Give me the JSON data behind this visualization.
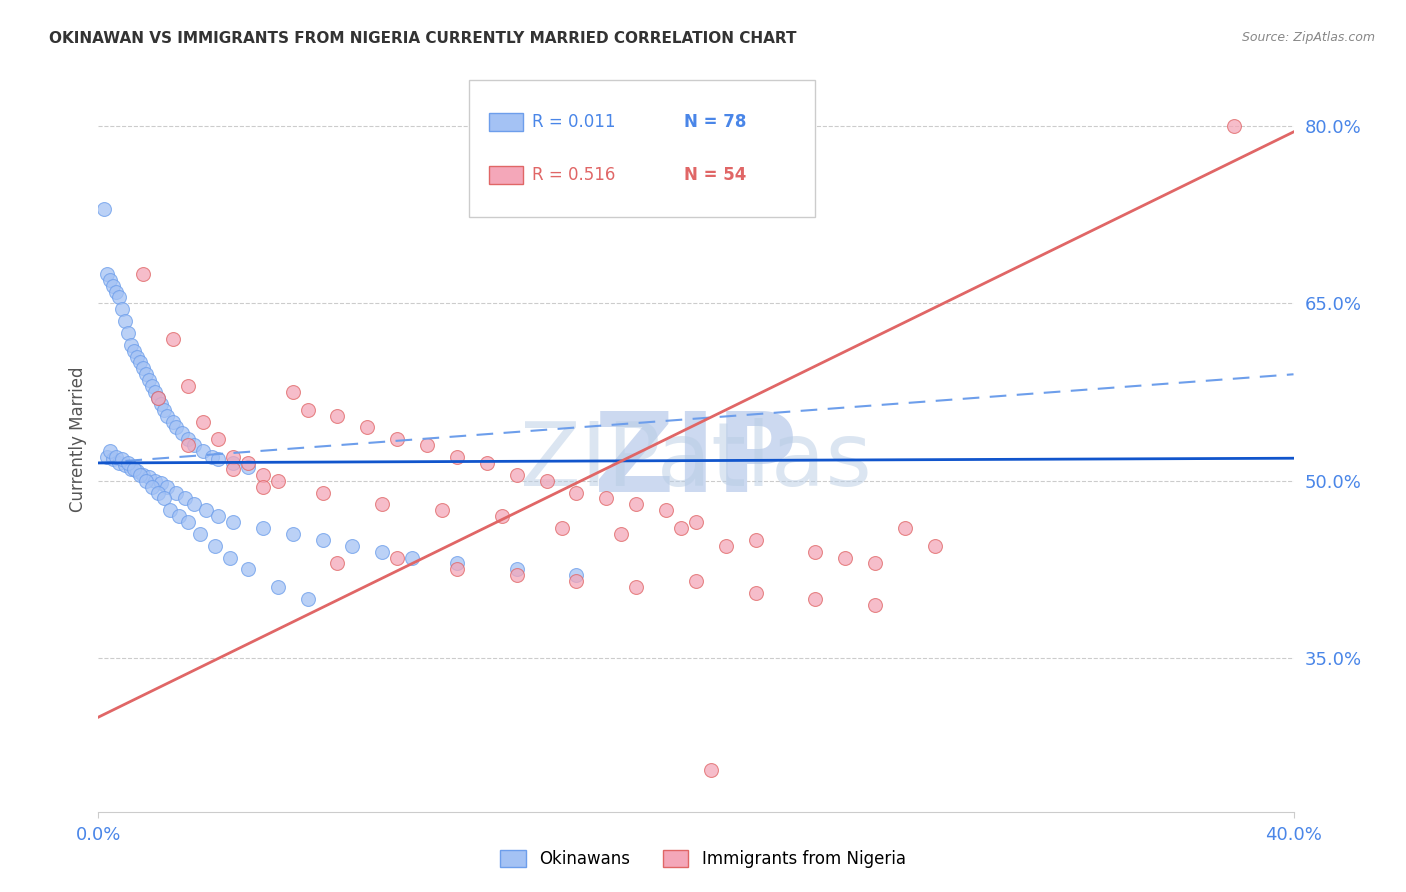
{
  "title": "OKINAWAN VS IMMIGRANTS FROM NIGERIA CURRENTLY MARRIED CORRELATION CHART",
  "source": "Source: ZipAtlas.com",
  "ylabel": "Currently Married",
  "right_yticks": [
    35.0,
    50.0,
    65.0,
    80.0
  ],
  "right_yticklabels": [
    "35.0%",
    "50.0%",
    "65.0%",
    "80.0%"
  ],
  "blue_scatter_face": "#a4c2f4",
  "blue_scatter_edge": "#6d9eeb",
  "pink_scatter_face": "#f4a7b9",
  "pink_scatter_edge": "#e06666",
  "blue_line_color": "#1155cc",
  "pink_line_color": "#e06666",
  "dashed_line_color": "#6d9eeb",
  "grid_color": "#cccccc",
  "tick_label_color": "#4a86e8",
  "ylabel_color": "#555555",
  "source_color": "#888888",
  "title_color": "#333333",
  "watermark_zip_color": "#ccd9f0",
  "watermark_atlas_color": "#b8cce4",
  "legend_edge_color": "#cccccc",
  "legend_blue_color": "#4a86e8",
  "legend_pink_color": "#e06666",
  "ok_blue_solid_x0": 0.0,
  "ok_blue_solid_x1": 40.0,
  "ok_blue_solid_y0": 51.5,
  "ok_blue_solid_y1": 51.9,
  "ok_dash_x0": 0.0,
  "ok_dash_x1": 40.0,
  "ok_dash_y0": 51.5,
  "ok_dash_y1": 59.0,
  "ng_line_x0": 0.0,
  "ng_line_x1": 40.0,
  "ng_line_y0": 30.0,
  "ng_line_y1": 79.5,
  "xlim_min": 0.0,
  "xlim_max": 40.0,
  "ylim_min": 22.0,
  "ylim_max": 85.0,
  "okinawan_x": [
    0.2,
    0.3,
    0.4,
    0.5,
    0.6,
    0.7,
    0.8,
    0.9,
    1.0,
    1.1,
    1.2,
    1.3,
    1.4,
    1.5,
    1.6,
    1.7,
    1.8,
    1.9,
    2.0,
    2.1,
    2.2,
    2.3,
    2.5,
    2.6,
    2.8,
    3.0,
    3.2,
    3.5,
    3.8,
    4.0,
    4.5,
    5.0,
    0.3,
    0.5,
    0.7,
    0.9,
    1.1,
    1.3,
    1.5,
    1.7,
    1.9,
    2.1,
    2.3,
    2.6,
    2.9,
    3.2,
    3.6,
    4.0,
    4.5,
    5.5,
    6.5,
    7.5,
    8.5,
    9.5,
    10.5,
    12.0,
    14.0,
    16.0,
    0.4,
    0.6,
    0.8,
    1.0,
    1.2,
    1.4,
    1.6,
    1.8,
    2.0,
    2.2,
    2.4,
    2.7,
    3.0,
    3.4,
    3.9,
    4.4,
    5.0,
    6.0,
    7.0
  ],
  "okinawan_y": [
    73.0,
    67.5,
    67.0,
    66.5,
    66.0,
    65.5,
    64.5,
    63.5,
    62.5,
    61.5,
    61.0,
    60.5,
    60.0,
    59.5,
    59.0,
    58.5,
    58.0,
    57.5,
    57.0,
    56.5,
    56.0,
    55.5,
    55.0,
    54.5,
    54.0,
    53.5,
    53.0,
    52.5,
    52.0,
    51.8,
    51.5,
    51.2,
    52.0,
    51.8,
    51.5,
    51.3,
    51.0,
    50.8,
    50.5,
    50.3,
    50.0,
    49.8,
    49.5,
    49.0,
    48.5,
    48.0,
    47.5,
    47.0,
    46.5,
    46.0,
    45.5,
    45.0,
    44.5,
    44.0,
    43.5,
    43.0,
    42.5,
    42.0,
    52.5,
    52.0,
    51.8,
    51.5,
    51.0,
    50.5,
    50.0,
    49.5,
    49.0,
    48.5,
    47.5,
    47.0,
    46.5,
    45.5,
    44.5,
    43.5,
    42.5,
    41.0,
    40.0
  ],
  "nigeria_x": [
    1.5,
    2.5,
    3.0,
    3.5,
    4.0,
    4.5,
    5.0,
    5.5,
    6.0,
    6.5,
    7.0,
    8.0,
    9.0,
    10.0,
    11.0,
    12.0,
    13.0,
    14.0,
    15.0,
    16.0,
    17.0,
    18.0,
    19.0,
    20.0,
    22.0,
    24.0,
    25.0,
    26.0,
    27.0,
    28.0,
    2.0,
    3.0,
    4.5,
    5.5,
    7.5,
    9.5,
    11.5,
    13.5,
    15.5,
    17.5,
    19.5,
    21.0,
    8.0,
    10.0,
    12.0,
    14.0,
    16.0,
    18.0,
    20.0,
    22.0,
    24.0,
    26.0,
    38.0
  ],
  "nigeria_y": [
    67.5,
    62.0,
    58.0,
    55.0,
    53.5,
    52.0,
    51.5,
    50.5,
    50.0,
    57.5,
    56.0,
    55.5,
    54.5,
    53.5,
    53.0,
    52.0,
    51.5,
    50.5,
    50.0,
    49.0,
    48.5,
    48.0,
    47.5,
    46.5,
    45.0,
    44.0,
    43.5,
    43.0,
    46.0,
    44.5,
    57.0,
    53.0,
    51.0,
    49.5,
    49.0,
    48.0,
    47.5,
    47.0,
    46.0,
    45.5,
    46.0,
    44.5,
    43.0,
    43.5,
    42.5,
    42.0,
    41.5,
    41.0,
    41.5,
    40.5,
    40.0,
    39.5,
    80.0
  ],
  "nigeria_low_x": 20.5,
  "nigeria_low_y": 25.5
}
